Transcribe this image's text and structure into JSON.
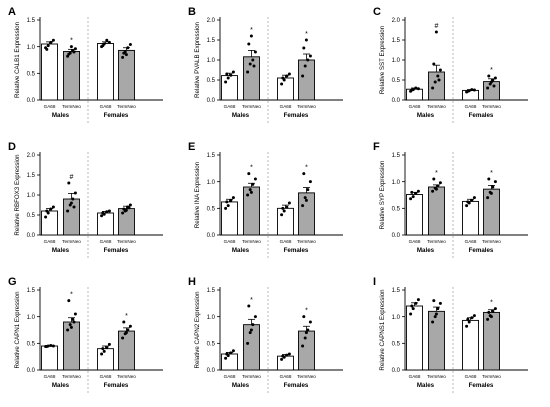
{
  "groups": [
    "GA68",
    "TermNeo"
  ],
  "sexes": [
    "Males",
    "Females"
  ],
  "colors": {
    "ga68_fill": "#ffffff",
    "termneo_fill": "#a8a8a8",
    "stroke": "#000000",
    "divider": "#9a9a9a"
  },
  "chart_data": [
    {
      "type": "bar",
      "panel": "A",
      "gene": "CALB1",
      "ylabel": "Relative CALB1 Expression",
      "ylim": [
        0,
        1.5
      ],
      "yticks": [
        "0.0",
        "0.5",
        "1.0",
        "1.5"
      ],
      "ytick_values": [
        0,
        0.5,
        1.0,
        1.5
      ],
      "categories": [
        "Males GA68",
        "Males TermNeo",
        "Females GA68",
        "Females TermNeo"
      ],
      "values": [
        1.05,
        0.91,
        1.06,
        0.93
      ],
      "errors": [
        0.04,
        0.04,
        0.03,
        0.05
      ],
      "points": [
        [
          0.98,
          1.02,
          1.08,
          1.12,
          0.95
        ],
        [
          0.82,
          0.88,
          0.92,
          0.96,
          0.86,
          1.0,
          0.9
        ],
        [
          1.0,
          1.05,
          1.12,
          1.08,
          1.02
        ],
        [
          0.8,
          0.9,
          0.98,
          1.04,
          0.88,
          0.85
        ]
      ],
      "annotations": [
        {
          "bar": 1,
          "text": "*"
        }
      ]
    },
    {
      "type": "bar",
      "panel": "B",
      "gene": "PVALB",
      "ylabel": "Relative PVALB Expression",
      "ylim": [
        0,
        2.0
      ],
      "yticks": [
        "0.0",
        "0.5",
        "1.0",
        "1.5",
        "2.0"
      ],
      "ytick_values": [
        0,
        0.5,
        1.0,
        1.5,
        2.0
      ],
      "categories": [
        "Males GA68",
        "Males TermNeo",
        "Females GA68",
        "Females TermNeo"
      ],
      "values": [
        0.61,
        1.08,
        0.55,
        1.0
      ],
      "errors": [
        0.06,
        0.16,
        0.07,
        0.15
      ],
      "points": [
        [
          0.45,
          0.55,
          0.62,
          0.7,
          0.65
        ],
        [
          0.7,
          0.9,
          1.0,
          1.2,
          1.4,
          1.6,
          0.85
        ],
        [
          0.4,
          0.5,
          0.6,
          0.65,
          0.55
        ],
        [
          0.6,
          0.85,
          1.0,
          1.1,
          1.3,
          1.5
        ]
      ],
      "annotations": [
        {
          "bar": 1,
          "text": "*"
        },
        {
          "bar": 3,
          "text": "*"
        }
      ]
    },
    {
      "type": "bar",
      "panel": "C",
      "gene": "SST",
      "ylabel": "Relative SST Expression",
      "ylim": [
        0,
        2.0
      ],
      "yticks": [
        "0.0",
        "0.5",
        "1.0",
        "1.5",
        "2.0"
      ],
      "ytick_values": [
        0,
        0.5,
        1.0,
        1.5,
        2.0
      ],
      "categories": [
        "Males GA68",
        "Males TermNeo",
        "Females GA68",
        "Females TermNeo"
      ],
      "values": [
        0.27,
        0.7,
        0.24,
        0.46
      ],
      "errors": [
        0.03,
        0.17,
        0.02,
        0.07
      ],
      "points": [
        [
          0.22,
          0.26,
          0.3,
          0.28,
          0.25
        ],
        [
          0.3,
          0.45,
          0.6,
          0.75,
          0.9,
          1.7,
          0.5
        ],
        [
          0.2,
          0.23,
          0.26,
          0.25,
          0.22
        ],
        [
          0.3,
          0.4,
          0.5,
          0.55,
          0.6,
          0.45,
          0.35
        ]
      ],
      "annotations": [
        {
          "bar": 1,
          "text": "#"
        },
        {
          "bar": 3,
          "text": "*"
        }
      ]
    },
    {
      "type": "bar",
      "panel": "D",
      "gene": "RBFOX3",
      "ylabel": "Relative RBFOX3 Expression",
      "ylim": [
        0,
        2.0
      ],
      "yticks": [
        "0.0",
        "0.5",
        "1.0",
        "1.5",
        "2.0"
      ],
      "ytick_values": [
        0,
        0.5,
        1.0,
        1.5,
        2.0
      ],
      "categories": [
        "Males GA68",
        "Males TermNeo",
        "Females GA68",
        "Females TermNeo"
      ],
      "values": [
        0.6,
        0.9,
        0.55,
        0.66
      ],
      "errors": [
        0.06,
        0.14,
        0.04,
        0.06
      ],
      "points": [
        [
          0.45,
          0.55,
          0.65,
          0.7,
          0.6
        ],
        [
          0.6,
          0.75,
          0.9,
          1.05,
          1.3,
          0.8,
          0.7
        ],
        [
          0.48,
          0.52,
          0.58,
          0.6,
          0.55
        ],
        [
          0.55,
          0.6,
          0.7,
          0.75,
          0.65,
          0.62,
          0.68
        ]
      ],
      "annotations": [
        {
          "bar": 1,
          "text": "#"
        }
      ]
    },
    {
      "type": "bar",
      "panel": "E",
      "gene": "INA",
      "ylabel": "Relative INA Expression",
      "ylim": [
        0,
        1.5
      ],
      "yticks": [
        "0.0",
        "0.5",
        "1.0",
        "1.5"
      ],
      "ytick_values": [
        0,
        0.5,
        1.0,
        1.5
      ],
      "categories": [
        "Males GA68",
        "Males TermNeo",
        "Females GA68",
        "Females TermNeo"
      ],
      "values": [
        0.62,
        0.9,
        0.5,
        0.79
      ],
      "errors": [
        0.05,
        0.07,
        0.06,
        0.1
      ],
      "points": [
        [
          0.5,
          0.55,
          0.65,
          0.7,
          0.62
        ],
        [
          0.75,
          0.85,
          0.95,
          1.05,
          1.15,
          0.8
        ],
        [
          0.38,
          0.45,
          0.52,
          0.6,
          0.5
        ],
        [
          0.55,
          0.7,
          0.85,
          1.0,
          1.15,
          0.65
        ]
      ],
      "annotations": [
        {
          "bar": 1,
          "text": "*"
        },
        {
          "bar": 3,
          "text": "*"
        }
      ]
    },
    {
      "type": "bar",
      "panel": "F",
      "gene": "SYP",
      "ylabel": "Relative SYP Expression",
      "ylim": [
        0,
        1.5
      ],
      "yticks": [
        "0.0",
        "0.5",
        "1.0",
        "1.5"
      ],
      "ytick_values": [
        0,
        0.5,
        1.0,
        1.5
      ],
      "categories": [
        "Males GA68",
        "Males TermNeo",
        "Females GA68",
        "Females TermNeo"
      ],
      "values": [
        0.76,
        0.9,
        0.63,
        0.86
      ],
      "errors": [
        0.04,
        0.04,
        0.04,
        0.07
      ],
      "points": [
        [
          0.68,
          0.72,
          0.78,
          0.82,
          0.8
        ],
        [
          0.82,
          0.88,
          0.92,
          0.98,
          1.05,
          0.86
        ],
        [
          0.55,
          0.6,
          0.65,
          0.7,
          0.62
        ],
        [
          0.7,
          0.8,
          0.9,
          1.0,
          1.05,
          0.78
        ]
      ],
      "annotations": [
        {
          "bar": 1,
          "text": "*"
        },
        {
          "bar": 3,
          "text": "*"
        }
      ]
    },
    {
      "type": "bar",
      "panel": "G",
      "gene": "CAPN1",
      "ylabel": "Relative CAPN1 Expression",
      "ylim": [
        0,
        1.5
      ],
      "yticks": [
        "0.0",
        "0.5",
        "1.0",
        "1.5"
      ],
      "ytick_values": [
        0,
        0.5,
        1.0,
        1.5
      ],
      "categories": [
        "Males GA68",
        "Males TermNeo",
        "Females GA68",
        "Females TermNeo"
      ],
      "values": [
        0.45,
        0.9,
        0.4,
        0.73
      ],
      "errors": [
        0.01,
        0.08,
        0.05,
        0.06
      ],
      "points": [
        [
          0.44,
          0.45,
          0.46,
          0.45,
          0.44
        ],
        [
          0.75,
          0.85,
          0.95,
          1.05,
          1.3,
          0.8,
          0.9
        ],
        [
          0.3,
          0.35,
          0.42,
          0.48,
          0.4
        ],
        [
          0.6,
          0.68,
          0.75,
          0.82,
          0.9,
          0.7
        ]
      ],
      "annotations": [
        {
          "bar": 1,
          "text": "*"
        },
        {
          "bar": 3,
          "text": "*"
        }
      ]
    },
    {
      "type": "bar",
      "panel": "H",
      "gene": "CAPN2",
      "ylabel": "Relative CAPN2 Expression",
      "ylim": [
        0,
        1.5
      ],
      "yticks": [
        "0.0",
        "0.5",
        "1.0",
        "1.5"
      ],
      "ytick_values": [
        0,
        0.5,
        1.0,
        1.5
      ],
      "categories": [
        "Males GA68",
        "Males TermNeo",
        "Females GA68",
        "Females TermNeo"
      ],
      "values": [
        0.3,
        0.85,
        0.26,
        0.73
      ],
      "errors": [
        0.03,
        0.1,
        0.03,
        0.09
      ],
      "points": [
        [
          0.22,
          0.27,
          0.32,
          0.36,
          0.3
        ],
        [
          0.5,
          0.7,
          0.85,
          1.0,
          1.2,
          0.75
        ],
        [
          0.2,
          0.24,
          0.28,
          0.3,
          0.26
        ],
        [
          0.45,
          0.6,
          0.75,
          0.9,
          1.0,
          0.7
        ]
      ],
      "annotations": [
        {
          "bar": 1,
          "text": "*"
        },
        {
          "bar": 3,
          "text": "*"
        }
      ]
    },
    {
      "type": "bar",
      "panel": "I",
      "gene": "CAPNS1",
      "ylabel": "Relative CAPNS1 Expression",
      "ylim": [
        0,
        1.5
      ],
      "yticks": [
        "0.0",
        "0.5",
        "1.0",
        "1.5"
      ],
      "ytick_values": [
        0,
        0.5,
        1.0,
        1.5
      ],
      "categories": [
        "Males GA68",
        "Males TermNeo",
        "Females GA68",
        "Females TermNeo"
      ],
      "values": [
        1.2,
        1.1,
        0.93,
        1.08
      ],
      "errors": [
        0.06,
        0.08,
        0.05,
        0.05
      ],
      "points": [
        [
          1.05,
          1.15,
          1.25,
          1.32,
          1.2
        ],
        [
          0.9,
          1.0,
          1.15,
          1.25,
          1.3,
          1.05
        ],
        [
          0.82,
          0.9,
          0.98,
          1.02,
          0.95
        ],
        [
          0.95,
          1.02,
          1.1,
          1.15,
          1.08,
          1.0
        ]
      ],
      "annotations": [
        {
          "bar": 3,
          "text": "*"
        }
      ]
    }
  ]
}
